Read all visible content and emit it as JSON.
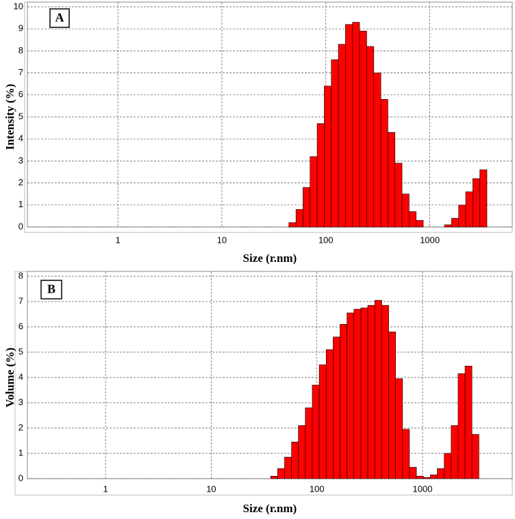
{
  "chart_data": [
    {
      "type": "histogram",
      "panel_label": "A",
      "xlabel": "Size (r.nm)",
      "ylabel": "Intensity (%)",
      "x_scale": "log",
      "grid": true,
      "color": "#ff0000",
      "xlim": [
        0.135,
        6200
      ],
      "xticks": [
        1,
        10,
        100,
        1000
      ],
      "ylim": [
        0,
        10
      ],
      "yticks": [
        0,
        1,
        2,
        3,
        4,
        5,
        6,
        7,
        8,
        9,
        10
      ],
      "bins": [
        44.1,
        51.6,
        60.3,
        70.5,
        82.5,
        96.5,
        112.8,
        131.9,
        154.3,
        180.5,
        211,
        247,
        289,
        338,
        395,
        462,
        540,
        632,
        739,
        864,
        1011,
        1182,
        1382,
        1617,
        1891,
        2211,
        2586,
        3024,
        3537
      ],
      "values": [
        0.2,
        0.8,
        1.8,
        3.2,
        4.7,
        6.4,
        7.6,
        8.3,
        9.2,
        9.3,
        8.9,
        8.2,
        7.0,
        5.8,
        4.3,
        2.9,
        1.5,
        0.7,
        0.3,
        0,
        0,
        0,
        0.1,
        0.4,
        1.0,
        1.6,
        2.2,
        2.6
      ]
    },
    {
      "type": "histogram",
      "panel_label": "B",
      "xlabel": "Size (r.nm)",
      "ylabel": "Volume (%)",
      "x_scale": "log",
      "grid": true,
      "color": "#ff0000",
      "xlim": [
        0.182,
        7063
      ],
      "xticks": [
        1,
        10,
        100,
        1000
      ],
      "ylim": [
        0,
        8
      ],
      "yticks": [
        0,
        1,
        2,
        3,
        4,
        5,
        6,
        7,
        8
      ],
      "bins": [
        36.5,
        42.5,
        49.4,
        57.5,
        66.8,
        77.7,
        90.4,
        105.2,
        122.4,
        142.4,
        165.6,
        192.6,
        224,
        261,
        303,
        353,
        411,
        478,
        556,
        647,
        752,
        875,
        1018,
        1185,
        1378,
        1603,
        1865,
        2169,
        2523,
        2935,
        3415
      ],
      "values": [
        0.1,
        0.4,
        0.85,
        1.45,
        2.1,
        2.8,
        3.7,
        4.5,
        5.1,
        5.6,
        6.1,
        6.55,
        6.7,
        6.75,
        6.85,
        7.05,
        6.85,
        5.8,
        3.95,
        1.95,
        0.45,
        0.1,
        0.05,
        0.15,
        0.4,
        1.0,
        2.1,
        4.15,
        4.45,
        1.75
      ]
    }
  ]
}
